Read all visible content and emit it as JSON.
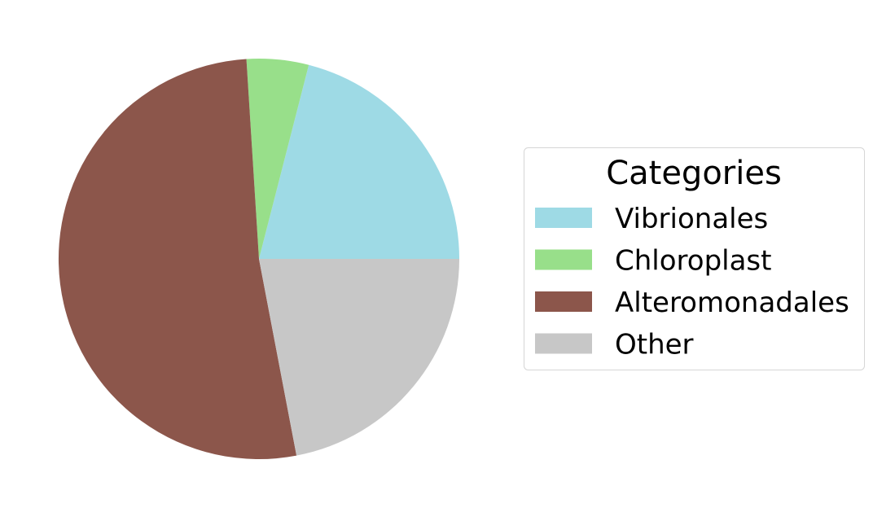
{
  "chart_data": {
    "type": "pie",
    "title": "",
    "categories": [
      "Vibrionales",
      "Chloroplast",
      "Alteromonadales",
      "Other"
    ],
    "values": [
      21,
      5,
      52,
      22
    ],
    "colors": [
      "#9edae5",
      "#98df8a",
      "#8c564b",
      "#c7c7c7"
    ],
    "start_angle_deg": 0,
    "direction": "counterclockwise",
    "legend": {
      "title": "Categories",
      "placement": "center-right"
    }
  }
}
